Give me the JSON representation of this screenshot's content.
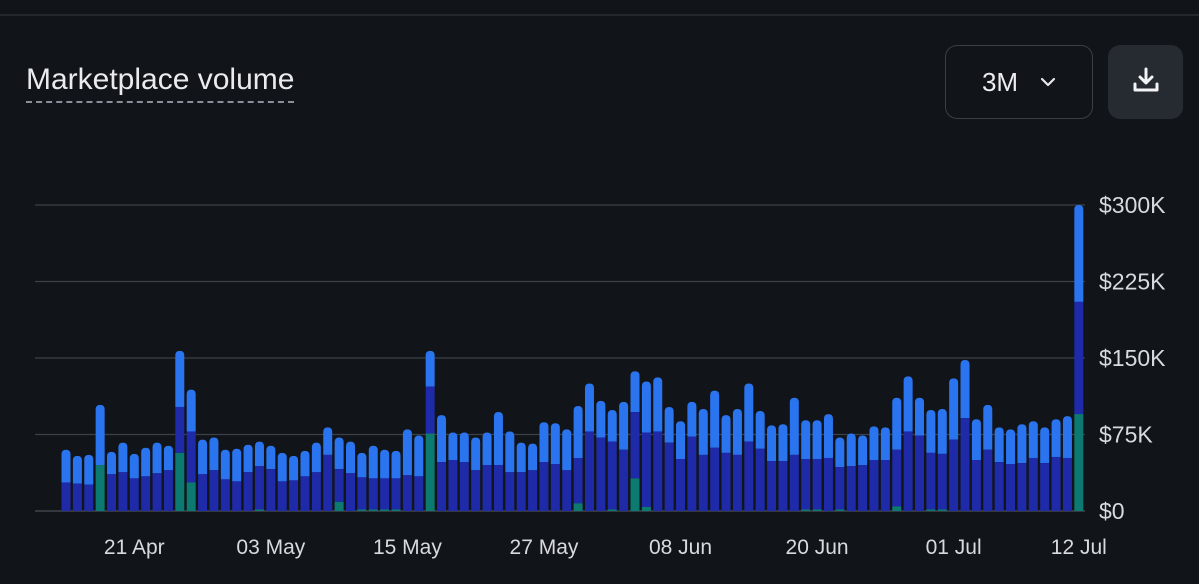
{
  "header": {
    "title": "Marketplace volume",
    "range_value": "3M",
    "range_icon": "chevron-down-icon",
    "download_icon": "download-icon"
  },
  "colors": {
    "background": "#111418",
    "series_top": "#2a74ef",
    "series_middle": "#1e2aa8",
    "series_bottom": "#0d7a72",
    "grid": "#3b4049"
  },
  "chart_data": {
    "type": "bar",
    "stacked": true,
    "title": "Marketplace volume",
    "y_ticks": [
      "$0",
      "$75K",
      "$150K",
      "$225K",
      "$300K"
    ],
    "ylim": [
      0,
      300000
    ],
    "x_tick_labels": [
      "21 Apr",
      "03 May",
      "15 May",
      "27 May",
      "08 Jun",
      "20 Jun",
      "01 Jul",
      "12 Jul"
    ],
    "x_tick_days": [
      6,
      18,
      30,
      42,
      54,
      66,
      78,
      89
    ],
    "days": 90,
    "grid": true,
    "totals": [
      60000,
      54000,
      55000,
      104000,
      58000,
      67000,
      56000,
      62000,
      67000,
      64000,
      157000,
      119000,
      70000,
      72000,
      60000,
      61000,
      65000,
      68000,
      64000,
      57000,
      54000,
      59000,
      67000,
      82000,
      72000,
      68000,
      57000,
      64000,
      60000,
      59000,
      80000,
      74000,
      157000,
      94000,
      77000,
      77000,
      72000,
      77000,
      97000,
      78000,
      67000,
      66000,
      87000,
      86000,
      80000,
      103000,
      125000,
      108000,
      99000,
      107000,
      137000,
      127000,
      131000,
      102000,
      88000,
      107000,
      100000,
      118000,
      94000,
      100000,
      125000,
      98000,
      84000,
      85000,
      111000,
      89000,
      89000,
      95000,
      72000,
      76000,
      74000,
      83000,
      82000,
      111000,
      132000,
      111000,
      99000,
      100000,
      130000,
      148000,
      90000,
      104000,
      82000,
      80000,
      85000,
      88000,
      82000,
      90000,
      93000,
      300000
    ],
    "middles": [
      28000,
      27000,
      26000,
      45000,
      36000,
      38000,
      32000,
      34000,
      37000,
      40000,
      102000,
      78000,
      36000,
      40000,
      31000,
      29000,
      38000,
      44000,
      41000,
      29000,
      30000,
      34000,
      38000,
      55000,
      41000,
      37000,
      33000,
      32000,
      32000,
      32000,
      35000,
      34000,
      122000,
      48000,
      50000,
      48000,
      40000,
      45000,
      45000,
      38000,
      38000,
      40000,
      48000,
      46000,
      40000,
      52000,
      78000,
      72000,
      68000,
      60000,
      97000,
      77000,
      78000,
      67000,
      51000,
      73000,
      55000,
      62000,
      57000,
      55000,
      68000,
      61000,
      49000,
      49000,
      55000,
      51000,
      51000,
      52000,
      43000,
      44000,
      45000,
      50000,
      50000,
      60000,
      78000,
      74000,
      57000,
      56000,
      70000,
      91000,
      50000,
      60000,
      48000,
      46000,
      47000,
      52000,
      47000,
      53000,
      52000,
      205000
    ],
    "bottoms": [
      0,
      0,
      0,
      47000,
      0,
      0,
      0,
      0,
      0,
      0,
      57000,
      28000,
      0,
      0,
      0,
      0,
      0,
      1500,
      0,
      0,
      0,
      0,
      0,
      0,
      9000,
      0,
      1500,
      1500,
      1500,
      1500,
      0,
      0,
      76000,
      0,
      0,
      0,
      0,
      0,
      0,
      0,
      0,
      0,
      0,
      0,
      0,
      7500,
      0,
      0,
      1500,
      0,
      32000,
      4000,
      0,
      0,
      0,
      0,
      0,
      0,
      0,
      0,
      0,
      0,
      0,
      0,
      0,
      1500,
      1500,
      0,
      1500,
      0,
      0,
      0,
      0,
      4500,
      0,
      0,
      1500,
      1500,
      0,
      0,
      0,
      0,
      0,
      0,
      0,
      0,
      0,
      0,
      0,
      95000
    ]
  }
}
